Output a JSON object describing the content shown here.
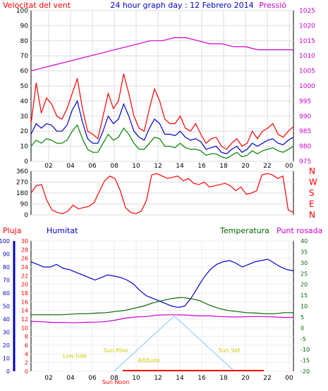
{
  "chart_data": [
    {
      "type": "line",
      "title": "24 hour graph day : 12 Febrero 2014",
      "left_label": "Velocitat del vent",
      "right_label": "Pressió",
      "x_ticks": [
        "02",
        "04",
        "06",
        "08",
        "10",
        "12",
        "14",
        "16",
        "18",
        "20",
        "22",
        "00"
      ],
      "left_ticks": [
        "0",
        "10",
        "20",
        "30",
        "40",
        "50",
        "60",
        "70",
        "80",
        "90",
        "100"
      ],
      "right_ticks": [
        "975",
        "980",
        "985",
        "990",
        "995",
        "1000",
        "1005",
        "1010",
        "1015",
        "1020",
        "1025"
      ],
      "ylim_left": [
        0,
        100
      ],
      "ylim_right": [
        975,
        1025
      ],
      "grid": true,
      "series": [
        {
          "key": "gust",
          "color": "#ff0000",
          "axis": "left",
          "values": [
            25,
            52,
            32,
            42,
            38,
            30,
            28,
            35,
            45,
            55,
            35,
            20,
            18,
            15,
            30,
            45,
            35,
            40,
            58,
            45,
            30,
            22,
            20,
            35,
            48,
            40,
            28,
            25,
            25,
            30,
            22,
            20,
            25,
            18,
            12,
            15,
            16,
            10,
            8,
            12,
            15,
            10,
            12,
            20,
            15,
            20,
            22,
            25,
            18,
            16,
            20,
            23
          ]
        },
        {
          "key": "average",
          "color": "#0000cc",
          "axis": "left",
          "values": [
            18,
            25,
            22,
            25,
            24,
            20,
            20,
            24,
            34,
            40,
            26,
            15,
            12,
            12,
            20,
            30,
            25,
            28,
            38,
            30,
            20,
            16,
            14,
            22,
            28,
            25,
            18,
            18,
            17,
            20,
            16,
            14,
            15,
            13,
            8,
            9,
            10,
            6,
            5,
            8,
            10,
            6,
            8,
            12,
            10,
            12,
            14,
            15,
            12,
            11,
            14,
            16
          ]
        },
        {
          "key": "wind",
          "color": "#008000",
          "axis": "left",
          "values": [
            10,
            14,
            12,
            15,
            14,
            12,
            12,
            14,
            20,
            24,
            15,
            8,
            6,
            6,
            12,
            18,
            14,
            16,
            22,
            18,
            12,
            8,
            8,
            12,
            16,
            15,
            10,
            10,
            9,
            12,
            9,
            8,
            8,
            7,
            4,
            5,
            5,
            3,
            2,
            4,
            6,
            3,
            4,
            7,
            5,
            7,
            8,
            9,
            7,
            6,
            8,
            10
          ]
        },
        {
          "key": "pressure",
          "color": "#cc00cc",
          "axis": "right",
          "values": [
            1005,
            1006,
            1007,
            1008,
            1009,
            1010,
            1011,
            1012,
            1013,
            1014,
            1015,
            1015,
            1016,
            1016,
            1015,
            1014,
            1014,
            1013,
            1013,
            1012,
            1012,
            1012,
            1012
          ]
        }
      ]
    },
    {
      "type": "line",
      "compass": [
        "N",
        "W",
        "S",
        "E",
        "N"
      ],
      "left_ticks": [
        "360",
        "270",
        "180",
        "90",
        "0"
      ],
      "ylim": [
        0,
        360
      ],
      "series": [
        {
          "key": "direction",
          "color": "#ff0000",
          "values": [
            180,
            240,
            250,
            120,
            40,
            20,
            10,
            30,
            80,
            50,
            60,
            70,
            100,
            190,
            280,
            320,
            300,
            200,
            60,
            20,
            10,
            30,
            120,
            330,
            340,
            320,
            300,
            310,
            320,
            280,
            300,
            260,
            250,
            270,
            230,
            240,
            250,
            260,
            240,
            200,
            230,
            170,
            180,
            200,
            330,
            340,
            330,
            300,
            320,
            40,
            20
          ]
        }
      ]
    },
    {
      "type": "line",
      "labels": {
        "rain": "Pluja",
        "humidity": "Humitat",
        "temperature": "Temperatura",
        "dewpoint": "Punt rosada"
      },
      "rain_ticks": [
        "0",
        "10",
        "20",
        "30",
        "40",
        "50",
        "60",
        "70",
        "80",
        "90",
        "100"
      ],
      "mid_ticks": [
        "0",
        "2",
        "4",
        "6",
        "8",
        "10",
        "12",
        "14",
        "16",
        "18",
        "20",
        "22",
        "24",
        "26",
        "28",
        "30"
      ],
      "temp_ticks": [
        "-20",
        "-15",
        "-10",
        "-5",
        "0",
        "5",
        "10",
        "15",
        "20",
        "25",
        "30",
        "35",
        "40"
      ],
      "ylim_humidity": [
        0,
        100
      ],
      "ylim_temperature": [
        -20,
        40
      ],
      "sun_labels": {
        "rise": "Sun Rise",
        "set": "Sun Set",
        "noon": "Sun Noon",
        "altitude": "Altitude",
        "low": "Low tide"
      },
      "series": [
        {
          "key": "humidity",
          "color": "#0000cc",
          "axis": "rain",
          "values": [
            84,
            82,
            80,
            80,
            82,
            79,
            78,
            76,
            74,
            72,
            70,
            72,
            74,
            73,
            72,
            70,
            67,
            62,
            58,
            56,
            54,
            52,
            50,
            49,
            50,
            56,
            64,
            72,
            78,
            82,
            84,
            85,
            83,
            80,
            82,
            84,
            85,
            86,
            83,
            80,
            78,
            77
          ]
        },
        {
          "key": "temperature",
          "color": "#006600",
          "axis": "temp",
          "values": [
            6,
            6,
            6,
            6,
            6.2,
            6.5,
            6.5,
            6.8,
            7,
            7.5,
            8,
            9,
            10,
            11.5,
            12.5,
            13.5,
            14,
            13.5,
            12.5,
            10.5,
            9,
            8,
            7.5,
            7,
            6.8,
            6.5,
            6.5,
            7,
            7
          ]
        },
        {
          "key": "dewpoint",
          "color": "#cc00cc",
          "axis": "temp",
          "values": [
            3,
            2.8,
            2.5,
            2.5,
            2.3,
            2.5,
            2.6,
            2.8,
            3.5,
            4.5,
            5,
            5.2,
            5.8,
            6,
            6,
            5.8,
            5.5,
            5.5,
            5.2,
            5,
            5,
            5.2,
            5.2,
            5,
            4.8,
            4.8
          ]
        },
        {
          "key": "sun",
          "color": "#99ccff",
          "axis": "temp",
          "x_hours": [
            7.6,
            13.1,
            18.6
          ],
          "values": [
            -20,
            5.5,
            -20
          ]
        }
      ]
    }
  ]
}
